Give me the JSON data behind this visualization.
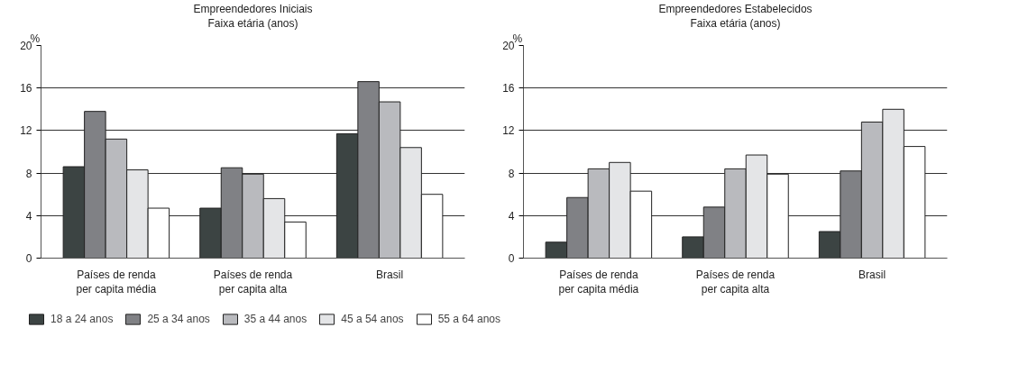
{
  "chart_data": [
    {
      "type": "bar",
      "title": "Empreendedores Iniciais",
      "subtitle": "Faixa etária (anos)",
      "ylabel": "%",
      "categories": [
        "Países de renda\nper capita média",
        "Países de renda\nper capita alta",
        "Brasil"
      ],
      "series": [
        {
          "name": "18 a 24 anos",
          "color": "#3c4443",
          "values": [
            8.6,
            4.7,
            11.7
          ]
        },
        {
          "name": "25 a 34 anos",
          "color": "#808185",
          "values": [
            13.8,
            8.5,
            16.6
          ]
        },
        {
          "name": "35 a 44 anos",
          "color": "#b9babe",
          "values": [
            11.2,
            7.9,
            14.7
          ]
        },
        {
          "name": "45 a 54 anos",
          "color": "#e4e5e7",
          "values": [
            8.3,
            5.6,
            10.4
          ]
        },
        {
          "name": "55 a 64 anos",
          "color": "#ffffff",
          "values": [
            4.7,
            3.4,
            6.0
          ]
        }
      ],
      "ylim": [
        0,
        20
      ],
      "yticks": [
        0,
        4,
        8,
        12,
        16,
        20
      ],
      "grid": "y",
      "legend": "bottom"
    },
    {
      "type": "bar",
      "title": "Empreendedores Estabelecidos",
      "subtitle": "Faixa etária (anos)",
      "ylabel": "%",
      "categories": [
        "Países de renda\nper capita média",
        "Países de renda\nper capita alta",
        "Brasil"
      ],
      "series": [
        {
          "color": "#3c4443",
          "values": [
            1.5,
            2.0,
            2.5
          ]
        },
        {
          "color": "#808185",
          "values": [
            5.7,
            4.8,
            8.2
          ]
        },
        {
          "color": "#b9babe",
          "values": [
            8.4,
            8.4,
            12.8
          ]
        },
        {
          "color": "#e4e5e7",
          "values": [
            9.0,
            9.7,
            14.0
          ]
        },
        {
          "color": "#ffffff",
          "values": [
            6.3,
            7.9,
            10.5
          ]
        }
      ],
      "ylim": [
        0,
        20
      ],
      "yticks": [
        0,
        4,
        8,
        12,
        16,
        20
      ],
      "grid": "y"
    }
  ]
}
